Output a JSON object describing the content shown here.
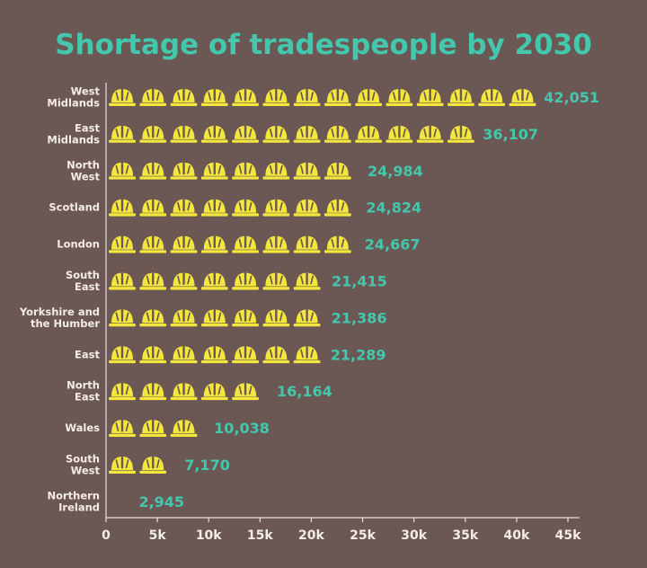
{
  "colors": {
    "background": "#6b5753",
    "accent": "#43c7ad",
    "helmet": "#f3e63d",
    "label": "#f4ece8",
    "axis": "#e9e0dc"
  },
  "icon": "hard-hat-icon",
  "chart_data": {
    "type": "bar",
    "orientation": "horizontal",
    "pictograph": true,
    "title": "Shortage of tradespeople by 2030",
    "xlabel": "",
    "ylabel": "",
    "xlim": [
      0,
      45000
    ],
    "unit_per_icon": 3000,
    "grid": false,
    "categories": [
      [
        "West",
        "Midlands"
      ],
      [
        "East",
        "Midlands"
      ],
      [
        "North",
        "West"
      ],
      [
        "Scotland"
      ],
      [
        "London"
      ],
      [
        "South",
        "East"
      ],
      [
        "Yorkshire and",
        "the Humber"
      ],
      [
        "East"
      ],
      [
        "North",
        "East"
      ],
      [
        "Wales"
      ],
      [
        "South",
        "West"
      ],
      [
        "Northern",
        "Ireland"
      ]
    ],
    "values": [
      42051,
      36107,
      24984,
      24824,
      24667,
      21415,
      21386,
      21289,
      16164,
      10038,
      7170,
      2945
    ],
    "value_labels": [
      "42,051",
      "36,107",
      "24,984",
      "24,824",
      "24,667",
      "21,415",
      "21,386",
      "21,289",
      "16,164",
      "10,038",
      "7,170",
      "2,945"
    ],
    "x_ticks": [
      0,
      5000,
      10000,
      15000,
      20000,
      25000,
      30000,
      35000,
      40000,
      45000
    ],
    "x_tick_labels": [
      "0",
      "5k",
      "10k",
      "15k",
      "20k",
      "25k",
      "30k",
      "35k",
      "40k",
      "45k"
    ]
  }
}
